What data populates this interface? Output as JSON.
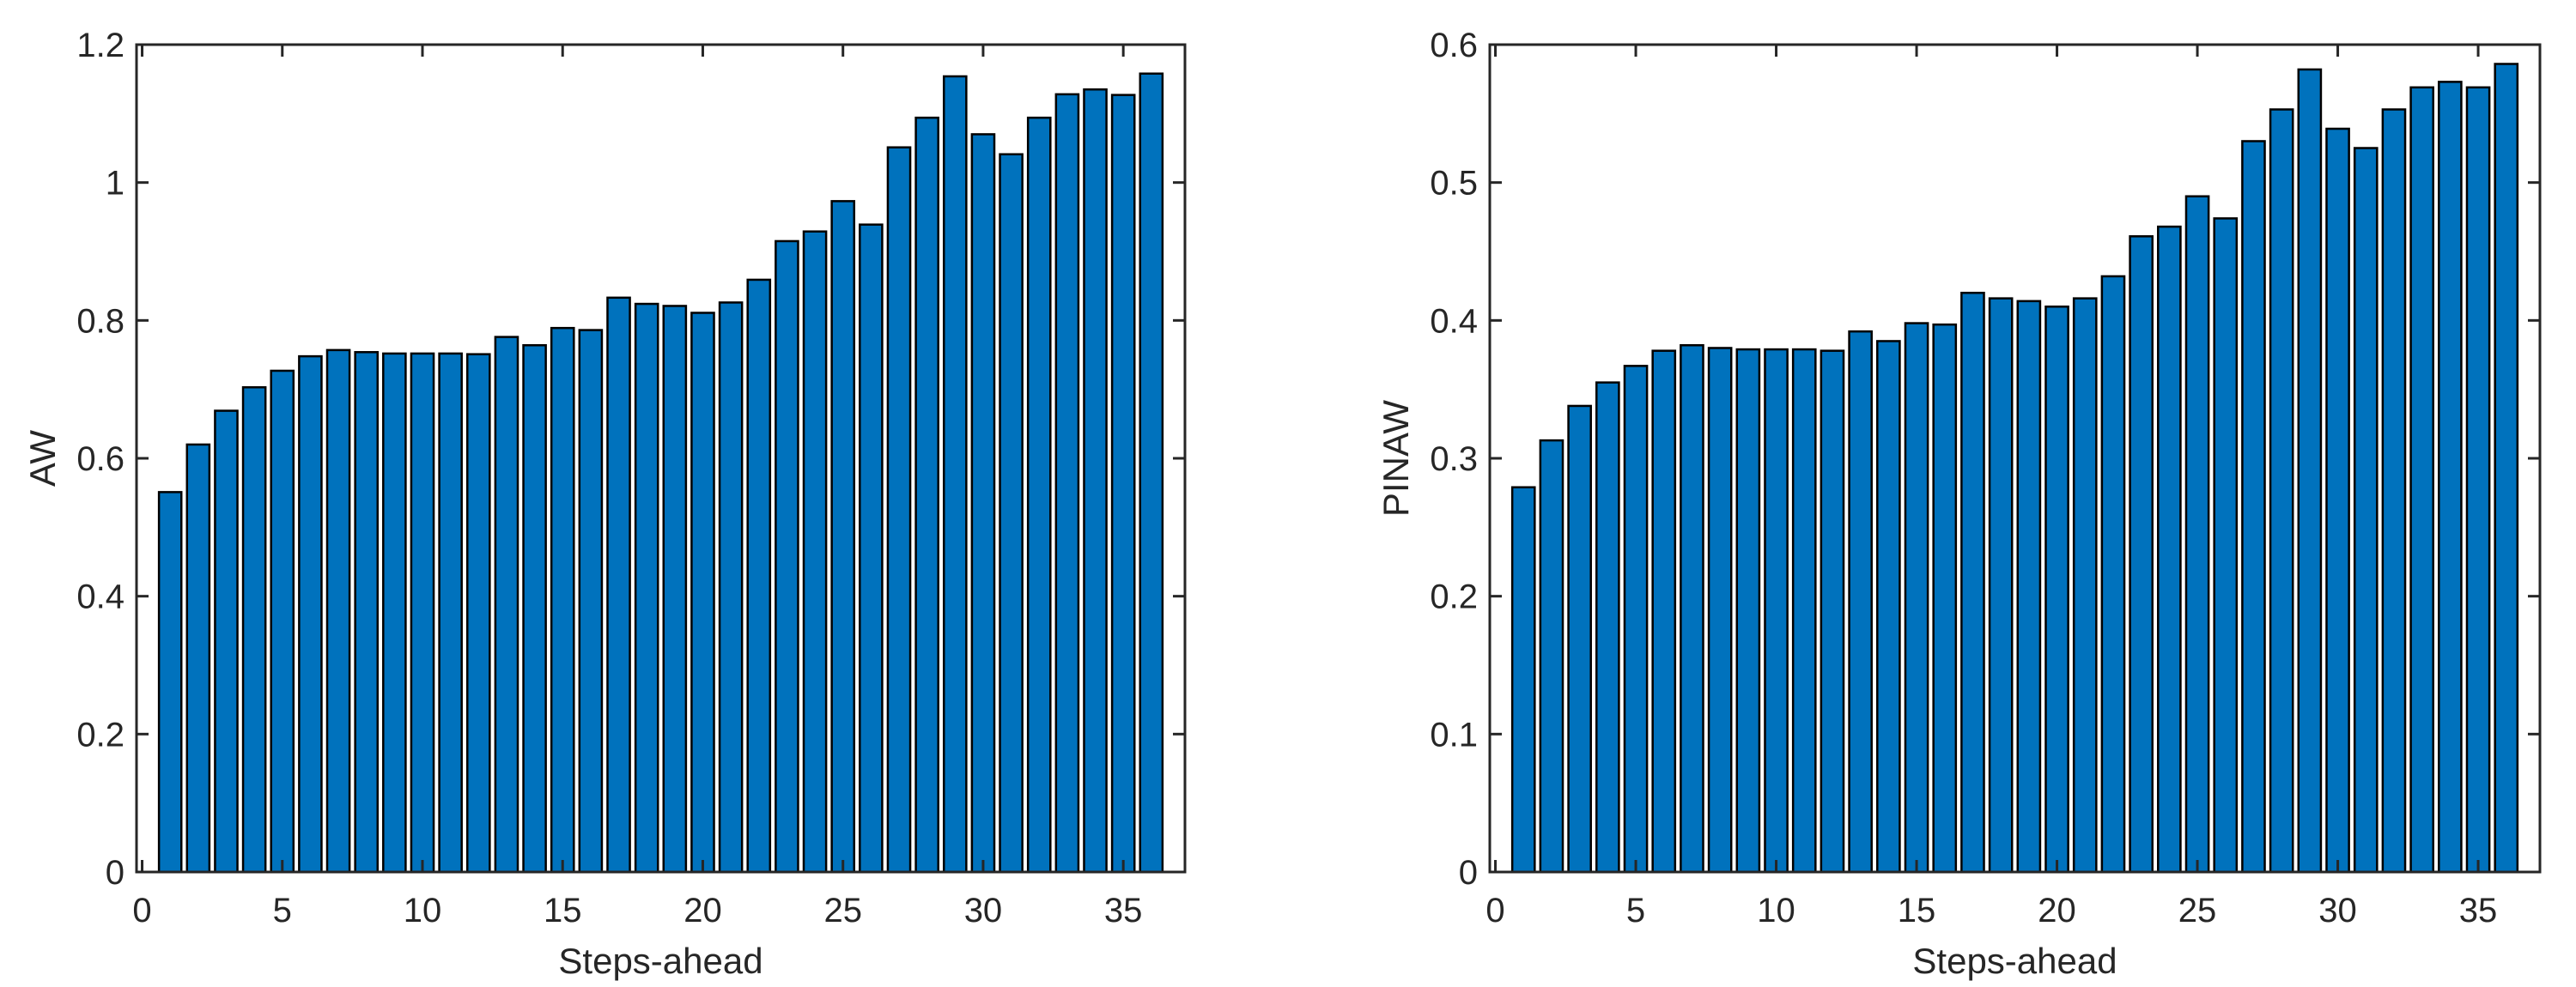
{
  "chart_data": [
    {
      "type": "bar",
      "title": "",
      "xlabel": "Steps-ahead",
      "ylabel": "AW",
      "xlim": [
        -0.2,
        37.2
      ],
      "ylim": [
        0,
        1.2
      ],
      "xticks": [
        0,
        5,
        10,
        15,
        20,
        25,
        30,
        35
      ],
      "yticks": [
        0,
        0.2,
        0.4,
        0.6,
        0.8,
        1,
        1.2
      ],
      "ytick_labels": [
        "0",
        "0.2",
        "0.4",
        "0.6",
        "0.8",
        "1",
        "1.2"
      ],
      "grid": false,
      "color": "#0072BD",
      "categories": [
        1,
        2,
        3,
        4,
        5,
        6,
        7,
        8,
        9,
        10,
        11,
        12,
        13,
        14,
        15,
        16,
        17,
        18,
        19,
        20,
        21,
        22,
        23,
        24,
        25,
        26,
        27,
        28,
        29,
        30,
        31,
        32,
        33,
        34,
        35,
        36
      ],
      "values": [
        0.551,
        0.62,
        0.669,
        0.703,
        0.727,
        0.748,
        0.757,
        0.754,
        0.752,
        0.752,
        0.752,
        0.751,
        0.776,
        0.764,
        0.789,
        0.786,
        0.833,
        0.824,
        0.821,
        0.811,
        0.826,
        0.859,
        0.915,
        0.929,
        0.973,
        0.939,
        1.051,
        1.094,
        1.154,
        1.07,
        1.041,
        1.094,
        1.128,
        1.135,
        1.127,
        1.158
      ]
    },
    {
      "type": "bar",
      "title": "",
      "xlabel": "Steps-ahead",
      "ylabel": "PINAW",
      "xlim": [
        -0.2,
        37.2
      ],
      "ylim": [
        0,
        0.6
      ],
      "xticks": [
        0,
        5,
        10,
        15,
        20,
        25,
        30,
        35
      ],
      "yticks": [
        0,
        0.1,
        0.2,
        0.3,
        0.4,
        0.5,
        0.6
      ],
      "ytick_labels": [
        "0",
        "0.1",
        "0.2",
        "0.3",
        "0.4",
        "0.5",
        "0.6"
      ],
      "grid": false,
      "color": "#0072BD",
      "categories": [
        1,
        2,
        3,
        4,
        5,
        6,
        7,
        8,
        9,
        10,
        11,
        12,
        13,
        14,
        15,
        16,
        17,
        18,
        19,
        20,
        21,
        22,
        23,
        24,
        25,
        26,
        27,
        28,
        29,
        30,
        31,
        32,
        33,
        34,
        35,
        36
      ],
      "values": [
        0.279,
        0.313,
        0.338,
        0.355,
        0.367,
        0.378,
        0.382,
        0.38,
        0.379,
        0.379,
        0.379,
        0.378,
        0.392,
        0.385,
        0.398,
        0.397,
        0.42,
        0.416,
        0.414,
        0.41,
        0.416,
        0.432,
        0.461,
        0.468,
        0.49,
        0.474,
        0.53,
        0.553,
        0.582,
        0.539,
        0.525,
        0.553,
        0.569,
        0.573,
        0.569,
        0.586
      ]
    }
  ]
}
